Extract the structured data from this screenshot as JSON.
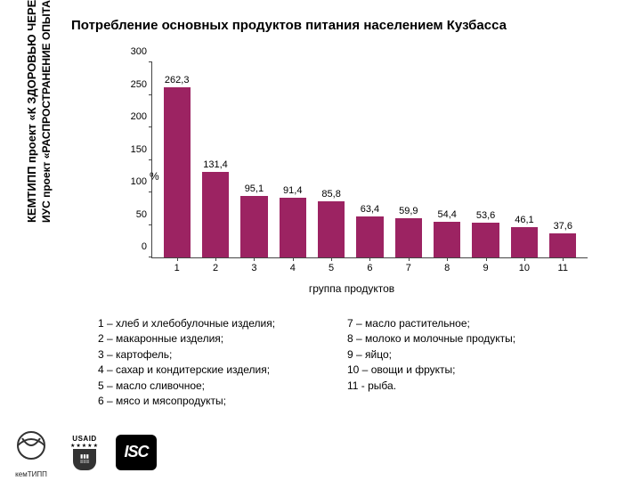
{
  "sidebar": {
    "line1": "КЕМТИПП проект «К ЗДОРОВЬЮ ЧЕРЕЗ ПИТАНИЕ»",
    "line2": "ИУС проект «РАСПРОСТРАНЕНИЕ ОПЫТА И РЕЗУЛЬТАТОВ"
  },
  "title": "Потребление основных продуктов питания населением Кузбасса",
  "chart": {
    "type": "bar",
    "ylabel": "%",
    "xlabel": "группа продуктов",
    "ylim": [
      0,
      300
    ],
    "ytick_step": 50,
    "yticks": [
      0,
      50,
      100,
      150,
      200,
      250,
      300
    ],
    "categories": [
      "1",
      "2",
      "3",
      "4",
      "5",
      "6",
      "7",
      "8",
      "9",
      "10",
      "11"
    ],
    "values": [
      262.3,
      131.4,
      95.1,
      91.4,
      85.8,
      63.4,
      59.9,
      54.4,
      53.6,
      46.1,
      37.6
    ],
    "value_labels": [
      "262,3",
      "131,4",
      "95,1",
      "91,4",
      "85,8",
      "63,4",
      "59,9",
      "54,4",
      "53,6",
      "46,1",
      "37,6"
    ],
    "bar_color": "#9c2362",
    "axis_color": "#444444",
    "text_color": "#000000",
    "label_fontsize": 11,
    "bar_width": 0.7,
    "background_color": "#ffffff"
  },
  "legend": {
    "left": [
      "1 – хлеб и хлебобулочные изделия;",
      "2 – макаронные изделия;",
      "3 – картофель;",
      "4 – сахар и кондитерские изделия;",
      "5 – масло сливочное;",
      "6 – мясо и мясопродукты;"
    ],
    "right": [
      "7 – масло растительное;",
      "8 – молоко и молочные продукты;",
      "9 – яйцо;",
      "10 – овощи и фрукты;",
      "11 - рыба."
    ]
  },
  "logos": {
    "kemtipp": "кемТИПП",
    "usaid_top": "USAID",
    "isc": "ISC"
  }
}
